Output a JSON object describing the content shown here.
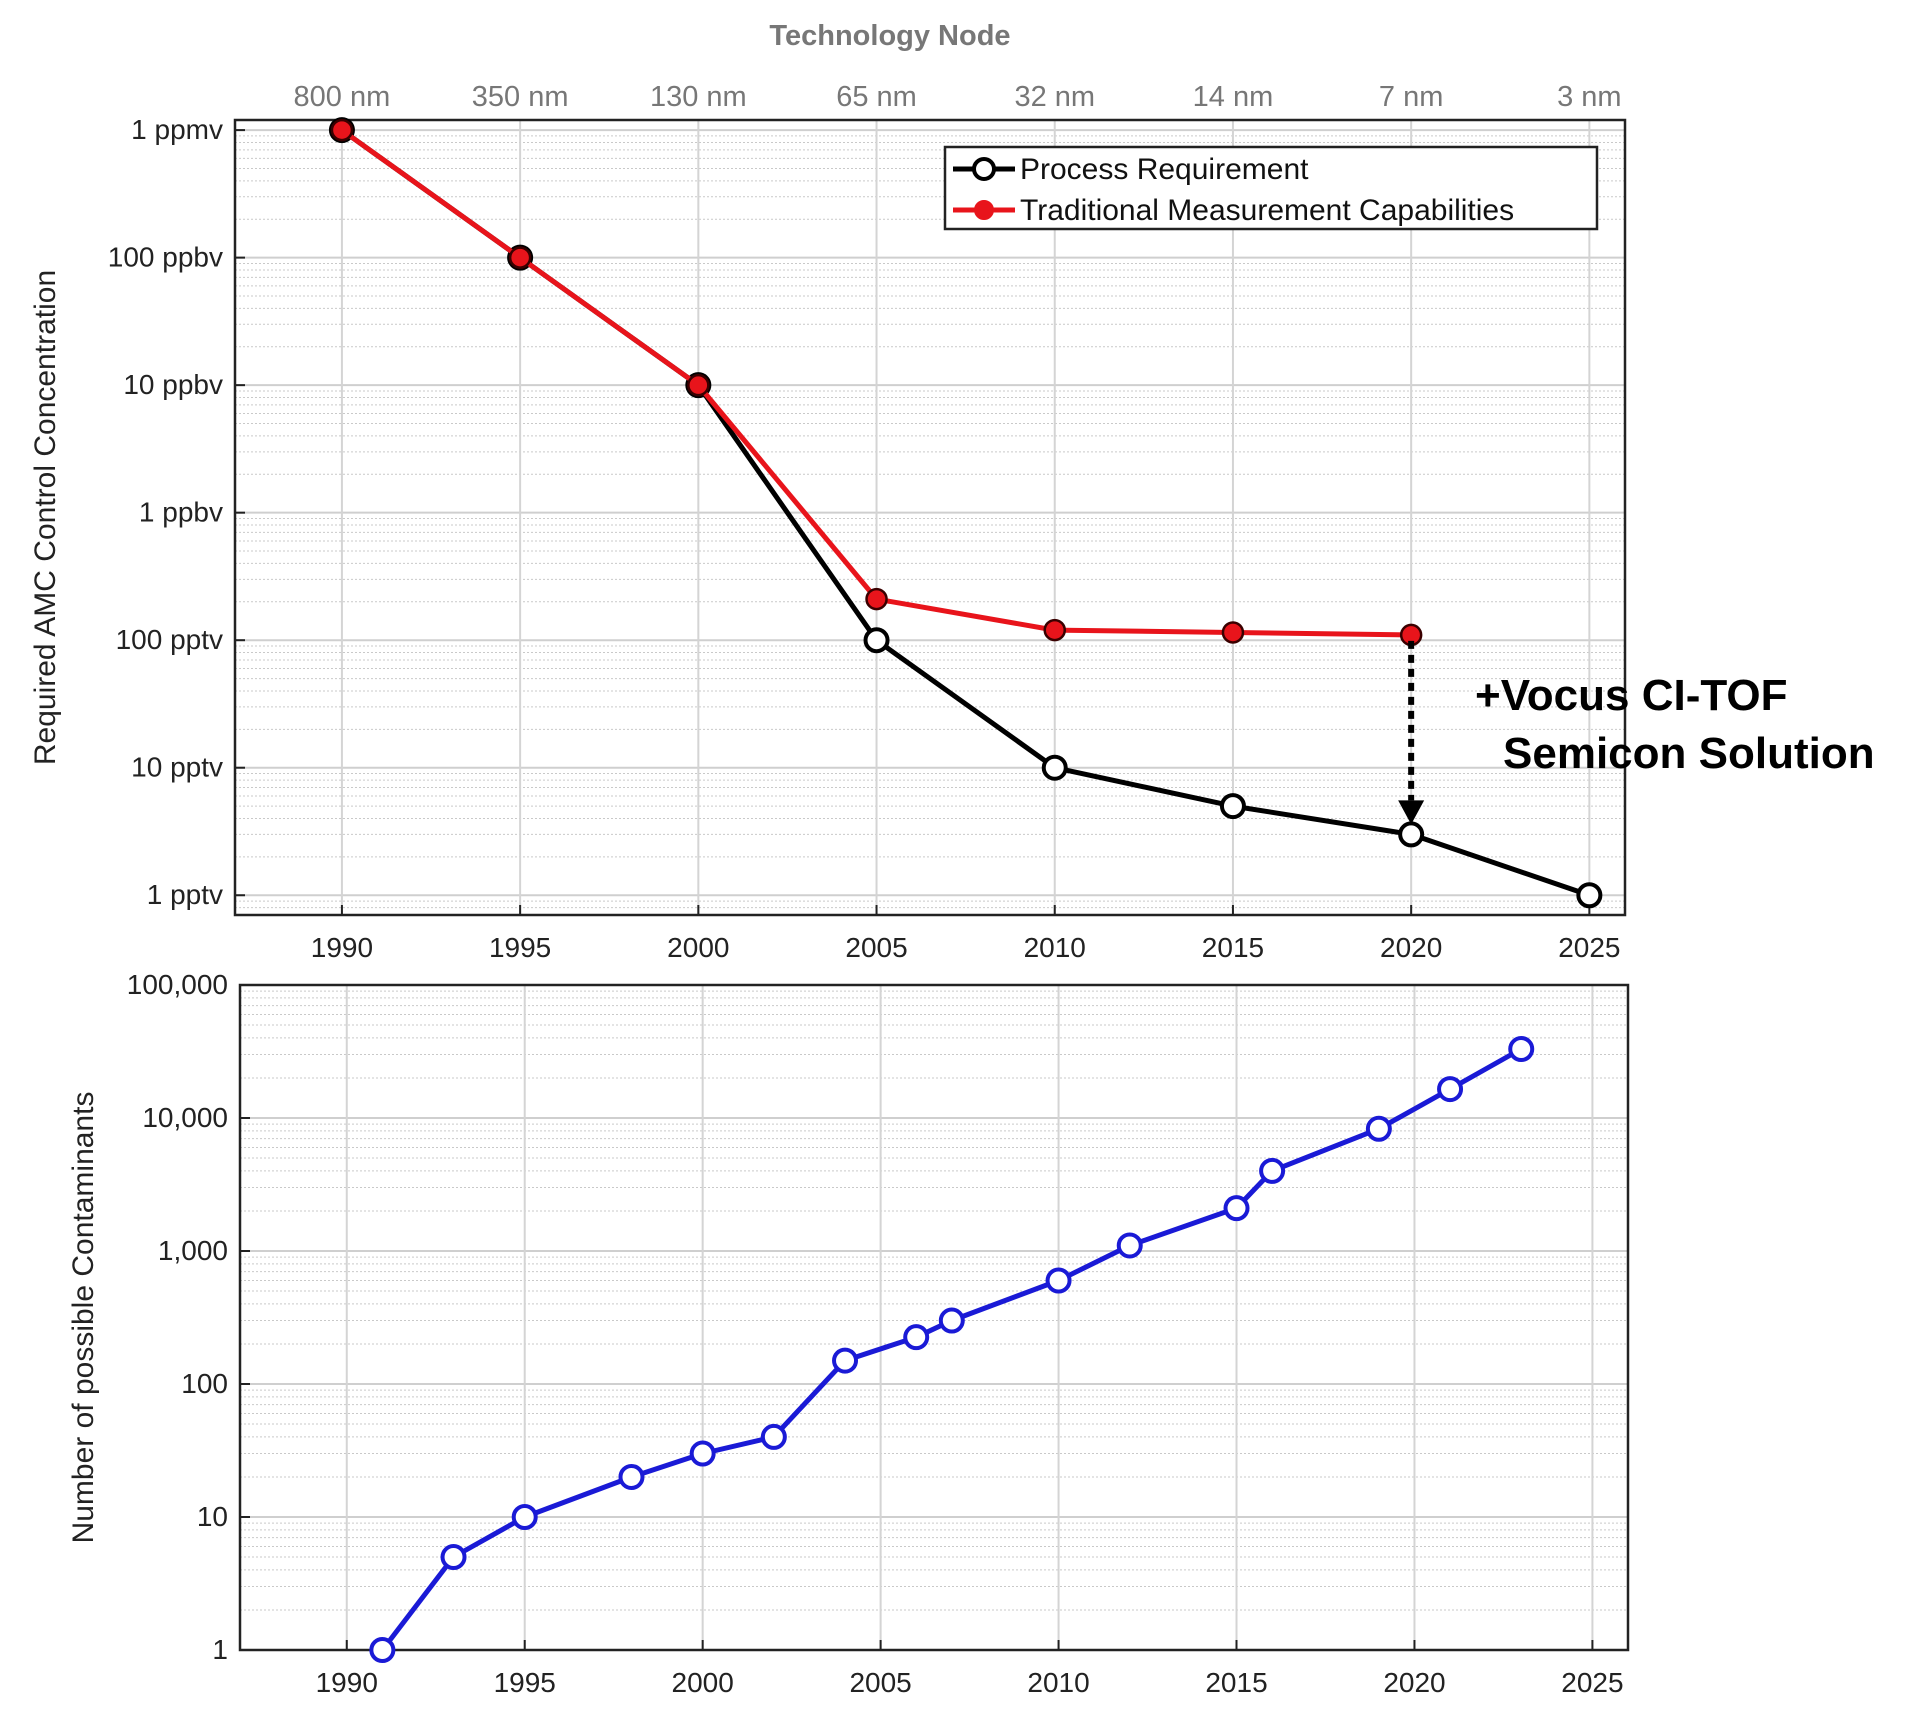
{
  "chart_data": [
    {
      "type": "line",
      "top_axis_title": "Technology Node",
      "top_axis_labels": [
        "800 nm",
        "350 nm",
        "130 nm",
        "65 nm",
        "32 nm",
        "14 nm",
        "7 nm",
        "3 nm"
      ],
      "ylabel": "Required AMC Control Concentration",
      "xlabel": "",
      "x_ticks": [
        1990,
        1995,
        2000,
        2005,
        2010,
        2015,
        2020,
        2025
      ],
      "xlim": [
        1987,
        2026
      ],
      "y_scale": "log",
      "y_unit": "ppbv",
      "ylim": [
        0.0007,
        1200
      ],
      "y_ticks": [
        {
          "value": 1000,
          "label": "1 ppmv"
        },
        {
          "value": 100,
          "label": "100 ppbv"
        },
        {
          "value": 10,
          "label": "10 ppbv"
        },
        {
          "value": 1,
          "label": "1 ppbv"
        },
        {
          "value": 0.1,
          "label": "100 pptv"
        },
        {
          "value": 0.01,
          "label": "10 pptv"
        },
        {
          "value": 0.001,
          "label": "1 pptv"
        }
      ],
      "grid": true,
      "legend_position": "top-right",
      "series": [
        {
          "name": "Process Requirement",
          "color": "#000000",
          "marker": "open-circle",
          "x": [
            1990,
            1995,
            2000,
            2005,
            2010,
            2015,
            2020,
            2025
          ],
          "y": [
            1000,
            100,
            10,
            0.1,
            0.01,
            0.005,
            0.003,
            0.001
          ]
        },
        {
          "name": "Traditional Measurement Capabilities",
          "color": "#e8141b",
          "marker": "filled-circle",
          "x": [
            1990,
            1995,
            2000,
            2005,
            2010,
            2015,
            2020
          ],
          "y": [
            1000,
            100,
            10,
            0.21,
            0.12,
            0.115,
            0.11
          ]
        }
      ],
      "annotation": {
        "lines": [
          "+Vocus CI-TOF",
          "Semicon Solution"
        ],
        "arrow_x": 2020,
        "arrow_from": 0.11,
        "arrow_to": 0.003
      }
    },
    {
      "type": "line",
      "ylabel": "Number of possible Contaminants",
      "xlabel": "",
      "x_ticks": [
        1990,
        1995,
        2000,
        2005,
        2010,
        2015,
        2020,
        2025
      ],
      "xlim": [
        1987,
        2026
      ],
      "y_scale": "log",
      "ylim": [
        1,
        100000
      ],
      "y_ticks": [
        {
          "value": 100000,
          "label": "100,000"
        },
        {
          "value": 10000,
          "label": "10,000"
        },
        {
          "value": 1000,
          "label": "1,000"
        },
        {
          "value": 100,
          "label": "100"
        },
        {
          "value": 10,
          "label": "10"
        },
        {
          "value": 1,
          "label": "1"
        }
      ],
      "grid": true,
      "series": [
        {
          "color": "#1a1ad6",
          "marker": "open-circle",
          "x": [
            1991,
            1993,
            1995,
            1998,
            2000,
            2002,
            2004,
            2006,
            2007,
            2010,
            2012,
            2015,
            2016,
            2019,
            2021,
            2023
          ],
          "y": [
            1,
            5,
            10,
            20,
            30,
            40,
            150,
            225,
            300,
            600,
            1100,
            2100,
            4000,
            8300,
            16500,
            33000
          ]
        }
      ]
    }
  ]
}
